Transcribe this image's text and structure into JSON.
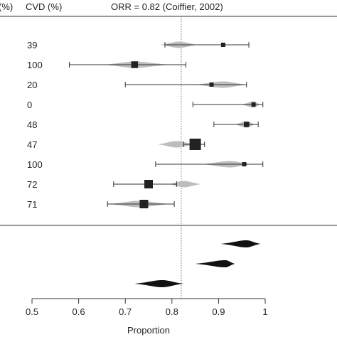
{
  "header": {
    "col1": "(%)",
    "col2": "CVD (%)",
    "ref_text": "ORR = 0.82 (Coiffier, 2002)"
  },
  "chart_data": {
    "type": "forest",
    "reference_line": 0.82,
    "xlim": [
      0.5,
      1.0
    ],
    "xticks": [
      "0.5",
      "0.6",
      "0.7",
      "0.8",
      "0.9",
      "1"
    ],
    "xlabel": "Proportion",
    "studies": [
      {
        "label": "39",
        "estimate": 0.91,
        "lower": 0.785,
        "upper": 0.965,
        "weight": 1.0,
        "post_mean": 0.815,
        "post_lo": 0.775,
        "post_hi": 0.855
      },
      {
        "label": "100",
        "estimate": 0.72,
        "lower": 0.58,
        "upper": 0.83,
        "weight": 1.7,
        "post_mean": 0.72,
        "post_lo": 0.655,
        "post_hi": 0.795
      },
      {
        "label": "20",
        "estimate": 0.885,
        "lower": 0.7,
        "upper": 0.96,
        "weight": 1.0,
        "post_mean": 0.91,
        "post_lo": 0.85,
        "post_hi": 0.96
      },
      {
        "label": "0",
        "estimate": 0.975,
        "lower": 0.845,
        "upper": 0.995,
        "weight": 1.0,
        "post_mean": 0.975,
        "post_lo": 0.95,
        "post_hi": 0.99
      },
      {
        "label": "48",
        "estimate": 0.96,
        "lower": 0.89,
        "upper": 0.985,
        "weight": 1.3,
        "post_mean": 0.96,
        "post_lo": 0.935,
        "post_hi": 0.978
      },
      {
        "label": "47",
        "estimate": 0.85,
        "lower": 0.825,
        "upper": 0.87,
        "weight": 3.0,
        "post_mean": 0.81,
        "post_lo": 0.77,
        "post_hi": 0.85
      },
      {
        "label": "100",
        "estimate": 0.955,
        "lower": 0.765,
        "upper": 0.995,
        "weight": 1.0,
        "post_mean": 0.925,
        "post_lo": 0.865,
        "post_hi": 0.97
      },
      {
        "label": "72",
        "estimate": 0.75,
        "lower": 0.675,
        "upper": 0.81,
        "weight": 2.2,
        "post_mean": 0.825,
        "post_lo": 0.795,
        "post_hi": 0.862
      },
      {
        "label": "71",
        "estimate": 0.74,
        "lower": 0.662,
        "upper": 0.805,
        "weight": 2.2,
        "post_mean": 0.73,
        "post_lo": 0.665,
        "post_hi": 0.795
      }
    ],
    "summaries": [
      {
        "mean": 0.96,
        "lo": 0.905,
        "hi": 0.99
      },
      {
        "mean": 0.915,
        "lo": 0.85,
        "hi": 0.935
      },
      {
        "mean": 0.78,
        "lo": 0.72,
        "hi": 0.825
      }
    ],
    "grid": false,
    "legend": "none"
  }
}
